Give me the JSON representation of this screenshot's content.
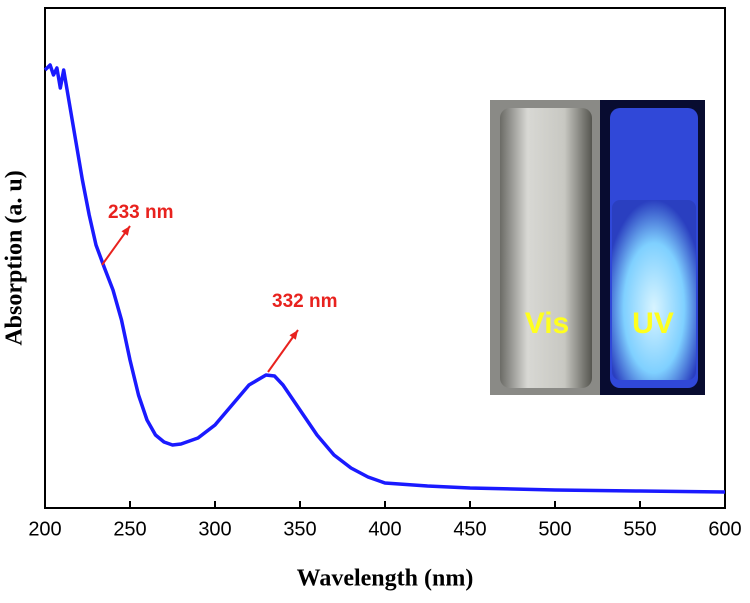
{
  "chart_data": {
    "type": "line",
    "x_label": "Wavelength (nm)",
    "y_label": "Absorption (a. u)",
    "color": "#1a1aff",
    "x": [
      200,
      203,
      205,
      207,
      209,
      211,
      213,
      215,
      218,
      222,
      226,
      230,
      235,
      240,
      245,
      250,
      255,
      260,
      265,
      270,
      275,
      280,
      290,
      300,
      310,
      320,
      330,
      335,
      340,
      350,
      360,
      370,
      380,
      390,
      400,
      425,
      450,
      500,
      550,
      600
    ],
    "values": [
      0.876,
      0.886,
      0.866,
      0.88,
      0.84,
      0.876,
      0.836,
      0.796,
      0.736,
      0.656,
      0.586,
      0.526,
      0.48,
      0.436,
      0.376,
      0.296,
      0.226,
      0.176,
      0.146,
      0.132,
      0.126,
      0.128,
      0.14,
      0.166,
      0.206,
      0.246,
      0.266,
      0.264,
      0.246,
      0.196,
      0.146,
      0.106,
      0.08,
      0.062,
      0.05,
      0.044,
      0.04,
      0.036,
      0.034,
      0.032
    ],
    "xlim": [
      200,
      600
    ],
    "xticks": [
      200,
      250,
      300,
      350,
      400,
      450,
      500,
      550,
      600
    ],
    "ylim": [
      0,
      1
    ],
    "annotations": [
      "233 nm",
      "332 nm"
    ],
    "inset_labels": [
      "Vis",
      "UV"
    ]
  }
}
